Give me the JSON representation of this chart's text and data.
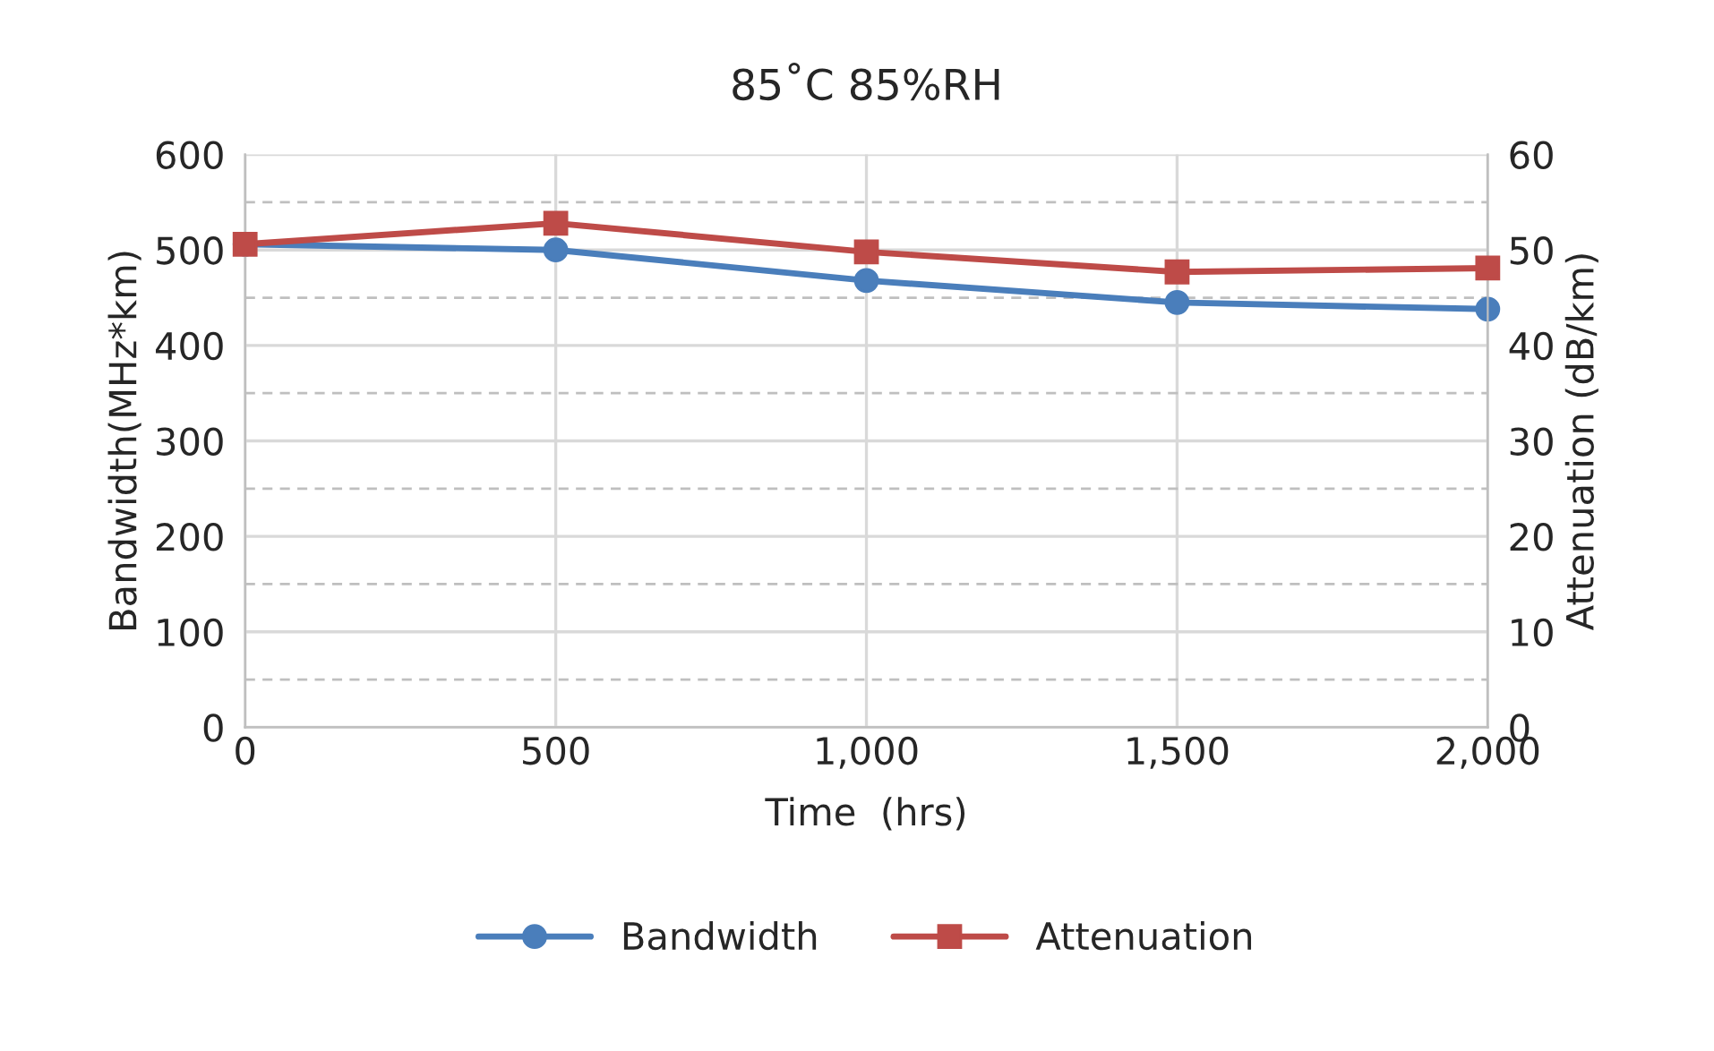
{
  "chart_data": {
    "type": "line",
    "title": "85˚C 85%RH",
    "xlabel": "Time  (hrs)",
    "ylabel": "Bandwidth(MHz*km)",
    "y2label": "Attenuation (dB/km)",
    "x": [
      0,
      500,
      1000,
      1500,
      2000
    ],
    "series": [
      {
        "name": "Bandwidth",
        "color": "#4a7ebb",
        "marker": "circle",
        "values": [
          506,
          500,
          468,
          445,
          438
        ]
      },
      {
        "name": "Attenuation",
        "color": "#be4b48",
        "marker": "square",
        "axis": "y2",
        "values": [
          50.6,
          52.8,
          49.8,
          47.7,
          48.1
        ]
      }
    ],
    "xlim": [
      0,
      2000
    ],
    "xticks": [
      0,
      500,
      {
        "value": 1000,
        "label": "1,000"
      },
      {
        "value": 1500,
        "label": "1,500"
      },
      {
        "value": 2000,
        "label": "2,000"
      }
    ],
    "ylim": [
      0,
      600
    ],
    "yticks": [
      0,
      100,
      200,
      300,
      400,
      500,
      600
    ],
    "y2lim": [
      0,
      60
    ],
    "y2ticks": [
      0,
      10,
      20,
      30,
      40,
      50,
      60
    ],
    "grid": true,
    "legend": "bottom",
    "line_style": "solid"
  }
}
